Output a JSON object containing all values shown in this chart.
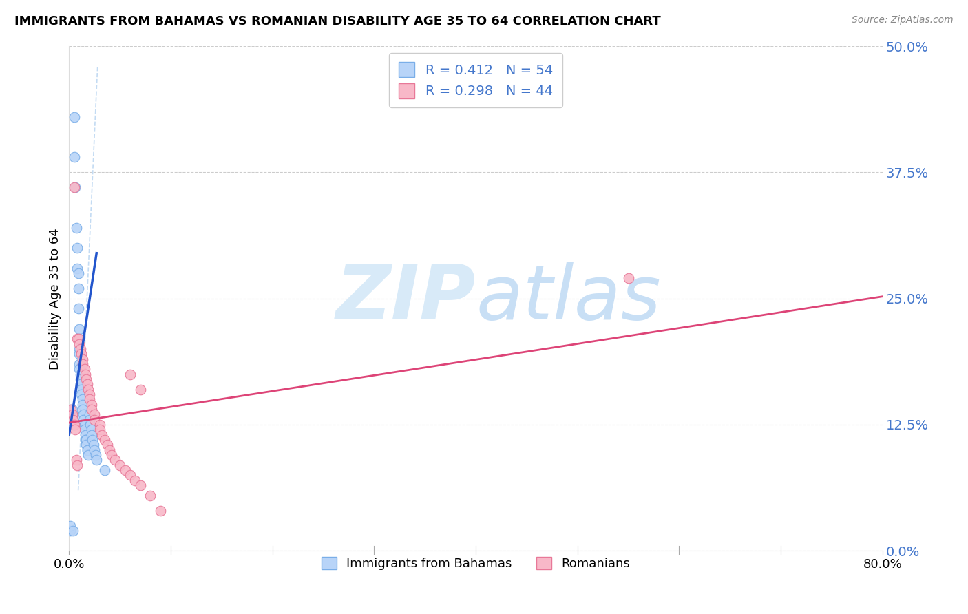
{
  "title": "IMMIGRANTS FROM BAHAMAS VS ROMANIAN DISABILITY AGE 35 TO 64 CORRELATION CHART",
  "source": "Source: ZipAtlas.com",
  "ylabel": "Disability Age 35 to 64",
  "ytick_labels": [
    "0.0%",
    "12.5%",
    "25.0%",
    "37.5%",
    "50.0%"
  ],
  "ytick_values": [
    0.0,
    0.125,
    0.25,
    0.375,
    0.5
  ],
  "xtick_labels": [
    "0.0%",
    "",
    "",
    "",
    "",
    "",
    "",
    "",
    "80.0%"
  ],
  "xtick_values": [
    0.0,
    0.1,
    0.2,
    0.3,
    0.4,
    0.5,
    0.6,
    0.7,
    0.8
  ],
  "xlim": [
    0.0,
    0.8
  ],
  "ylim": [
    0.0,
    0.5
  ],
  "bahamas_color_fill": "#b8d4f8",
  "bahamas_color_edge": "#7aaee8",
  "romanian_color_fill": "#f8b8c8",
  "romanian_color_edge": "#e87898",
  "bahamas_line_color": "#2255cc",
  "romanian_line_color": "#dd4477",
  "dashed_line_color": "#aaccee",
  "watermark_color": "#d8eaf8",
  "legend_r1": "R = 0.412   N = 54",
  "legend_r2": "R = 0.298   N = 44",
  "legend_label1": "Immigrants from Bahamas",
  "legend_label2": "Romanians",
  "bahamas_x": [
    0.005,
    0.005,
    0.006,
    0.007,
    0.008,
    0.008,
    0.009,
    0.009,
    0.009,
    0.01,
    0.01,
    0.01,
    0.01,
    0.01,
    0.01,
    0.011,
    0.011,
    0.011,
    0.012,
    0.012,
    0.013,
    0.013,
    0.013,
    0.014,
    0.014,
    0.015,
    0.015,
    0.016,
    0.016,
    0.017,
    0.017,
    0.018,
    0.018,
    0.019,
    0.02,
    0.02,
    0.021,
    0.022,
    0.022,
    0.023,
    0.024,
    0.025,
    0.026,
    0.027,
    0.001,
    0.001,
    0.002,
    0.002,
    0.003,
    0.003,
    0.004,
    0.004,
    0.035,
    0.004
  ],
  "bahamas_y": [
    0.43,
    0.39,
    0.36,
    0.32,
    0.3,
    0.28,
    0.275,
    0.26,
    0.24,
    0.22,
    0.21,
    0.2,
    0.195,
    0.185,
    0.18,
    0.175,
    0.17,
    0.165,
    0.16,
    0.155,
    0.15,
    0.145,
    0.14,
    0.135,
    0.13,
    0.125,
    0.12,
    0.115,
    0.11,
    0.11,
    0.105,
    0.1,
    0.1,
    0.095,
    0.135,
    0.13,
    0.125,
    0.12,
    0.115,
    0.11,
    0.105,
    0.1,
    0.095,
    0.09,
    0.02,
    0.025,
    0.14,
    0.135,
    0.14,
    0.135,
    0.13,
    0.125,
    0.08,
    0.02
  ],
  "romanian_x": [
    0.005,
    0.008,
    0.009,
    0.01,
    0.011,
    0.012,
    0.013,
    0.013,
    0.015,
    0.016,
    0.017,
    0.018,
    0.019,
    0.02,
    0.02,
    0.022,
    0.022,
    0.025,
    0.025,
    0.03,
    0.03,
    0.032,
    0.035,
    0.038,
    0.04,
    0.042,
    0.045,
    0.05,
    0.055,
    0.06,
    0.065,
    0.07,
    0.08,
    0.09,
    0.06,
    0.07,
    0.55,
    0.002,
    0.003,
    0.004,
    0.005,
    0.006,
    0.007,
    0.008
  ],
  "romanian_y": [
    0.36,
    0.21,
    0.21,
    0.205,
    0.2,
    0.195,
    0.19,
    0.185,
    0.18,
    0.175,
    0.17,
    0.165,
    0.16,
    0.155,
    0.15,
    0.145,
    0.14,
    0.135,
    0.13,
    0.125,
    0.12,
    0.115,
    0.11,
    0.105,
    0.1,
    0.095,
    0.09,
    0.085,
    0.08,
    0.075,
    0.07,
    0.065,
    0.055,
    0.04,
    0.175,
    0.16,
    0.27,
    0.14,
    0.135,
    0.13,
    0.125,
    0.12,
    0.09,
    0.085
  ],
  "bahamas_line_x": [
    0.0,
    0.027
  ],
  "bahamas_line_y": [
    0.115,
    0.295
  ],
  "romanian_line_x": [
    0.0,
    0.8
  ],
  "romanian_line_y": [
    0.127,
    0.252
  ],
  "dashed_line_x": [
    0.009,
    0.028
  ],
  "dashed_line_y": [
    0.06,
    0.48
  ]
}
